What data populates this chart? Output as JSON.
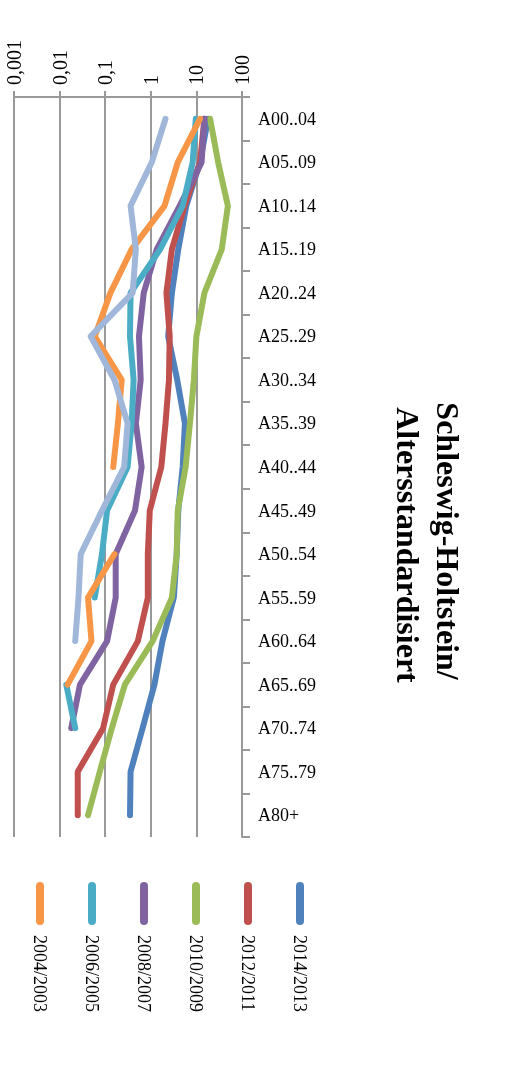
{
  "chart_data": {
    "type": "line",
    "title": "Schleswig-Holtstein/ Altersstandardisiert",
    "categories": [
      "A00..04",
      "A05..09",
      "A10..14",
      "A15..19",
      "A20..24",
      "A25..29",
      "A30..34",
      "A35..39",
      "A40..44",
      "A45..49",
      "A50..54",
      "A55..59",
      "A60..64",
      "A65..69",
      "A70..74",
      "A75..79",
      "A80+"
    ],
    "series": [
      {
        "name": "2014/2013",
        "color": "#4f81bd",
        "values": [
          18,
          12,
          6,
          4,
          2.9,
          2.4,
          3.8,
          5.6,
          5,
          4,
          3.7,
          3.2,
          1.8,
          1.2,
          0.66,
          0.36,
          0.35
        ]
      },
      {
        "name": "2012/2011",
        "color": "#c0504d",
        "values": [
          15,
          12,
          5.5,
          2.9,
          2.2,
          2.6,
          2.5,
          2.1,
          1.7,
          0.95,
          0.86,
          0.86,
          0.52,
          0.15,
          0.09,
          0.025,
          0.025
        ]
      },
      {
        "name": "2010/2009",
        "color": "#9bbb59",
        "values": [
          20,
          30,
          49,
          36,
          15,
          10,
          8.8,
          7.2,
          5.8,
          3.9,
          3.7,
          2.9,
          1.1,
          0.27,
          0.14,
          0.076,
          0.042
        ]
      },
      {
        "name": "2008/2007",
        "color": "#8064a2",
        "values": [
          15,
          13,
          4.3,
          1.35,
          0.7,
          0.55,
          0.6,
          0.47,
          0.63,
          0.45,
          0.17,
          0.17,
          0.11,
          0.028,
          0.018,
          null,
          null
        ]
      },
      {
        "name": "2006/2005",
        "color": "#4bacc6",
        "values": [
          9.7,
          8.3,
          5,
          1.6,
          0.36,
          0.35,
          0.42,
          0.38,
          0.31,
          0.11,
          0.085,
          0.059,
          null,
          0.014,
          0.022,
          null,
          null
        ]
      },
      {
        "name": "2004/2003",
        "color": "#f79646",
        "values": [
          12,
          3.9,
          2,
          0.38,
          0.13,
          0.059,
          0.23,
          0.19,
          0.15,
          null,
          0.16,
          0.042,
          0.05,
          0.015,
          null,
          null,
          null
        ]
      },
      {
        "color": "#a0b7d9",
        "values": [
          2.1,
          1.05,
          0.36,
          0.47,
          0.4,
          0.048,
          0.16,
          0.31,
          0.26,
          0.085,
          0.029,
          0.026,
          0.022,
          null,
          null,
          null,
          null
        ]
      }
    ],
    "orientation": "horizontal",
    "xlim": [
      0.001,
      100
    ],
    "xticks": [
      {
        "value": 0.001,
        "label": "0,001"
      },
      {
        "value": 0.01,
        "label": "0,01"
      },
      {
        "value": 0.1,
        "label": "0,1"
      },
      1,
      10,
      100
    ],
    "log": "x",
    "grid": "x",
    "legend": "right",
    "marker": "none"
  }
}
